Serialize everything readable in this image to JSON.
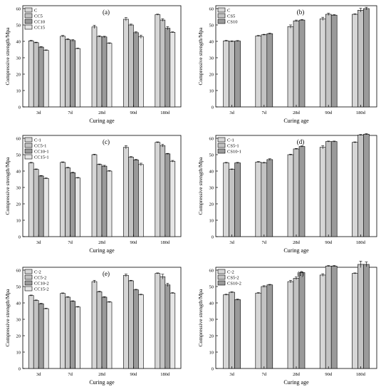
{
  "chart_data": [
    {
      "type": "bar",
      "panel_label": "(a)",
      "categories": [
        "3d",
        "7d",
        "28d",
        "90d",
        "180d"
      ],
      "series": [
        {
          "name": "C",
          "values": [
            40.3,
            43.1,
            48.8,
            53.5,
            56.3
          ],
          "errors": [
            0.3,
            0.5,
            1.0,
            1.0,
            0.3
          ]
        },
        {
          "name": "CC5",
          "values": [
            39.2,
            41.2,
            43.0,
            50.0,
            53.0
          ],
          "errors": [
            0.3,
            0.4,
            0.4,
            0.5,
            0.8
          ]
        },
        {
          "name": "CC10",
          "values": [
            36.5,
            40.5,
            42.7,
            45.3,
            48.0
          ],
          "errors": [
            0.3,
            0.5,
            0.4,
            0.5,
            1.0
          ]
        },
        {
          "name": "CC15",
          "values": [
            34.5,
            35.6,
            38.8,
            42.8,
            45.5
          ],
          "errors": [
            0.3,
            0.3,
            0.3,
            1.0,
            0.3
          ]
        }
      ],
      "xlabel": "Curing age",
      "ylabel": "Compressive strength/Mpa",
      "ylim": [
        0,
        60
      ],
      "yticks": [
        "0",
        "10",
        "20",
        "30",
        "40",
        "50",
        "60"
      ],
      "legend": "top-left",
      "grid": false
    },
    {
      "type": "bar",
      "panel_label": "(b)",
      "categories": [
        "3d",
        "7d",
        "28d",
        "90d",
        "180d"
      ],
      "series": [
        {
          "name": "C",
          "values": [
            40.3,
            43.3,
            49.0,
            53.7,
            56.5
          ],
          "errors": [
            0.3,
            0.3,
            1.0,
            1.0,
            0.3
          ]
        },
        {
          "name": "CS5",
          "values": [
            40.0,
            44.0,
            52.5,
            56.5,
            59.0
          ],
          "errors": [
            0.3,
            0.3,
            0.5,
            0.7,
            1.2
          ]
        },
        {
          "name": "CS10",
          "values": [
            40.2,
            44.7,
            53.0,
            56.0,
            60.0
          ],
          "errors": [
            0.3,
            0.3,
            0.3,
            0.3,
            0.8
          ]
        }
      ],
      "xlabel": "Curing age",
      "ylabel": "Compressive strength/Mpa",
      "ylim": [
        0,
        60
      ],
      "yticks": [
        "0",
        "10",
        "20",
        "30",
        "40",
        "50",
        "60"
      ],
      "legend": "top-left",
      "grid": false
    },
    {
      "type": "bar",
      "panel_label": "(c)",
      "categories": [
        "3d",
        "7d",
        "28d",
        "90d",
        "180d"
      ],
      "series": [
        {
          "name": "C-1",
          "values": [
            45.0,
            45.3,
            50.0,
            54.5,
            57.5
          ],
          "errors": [
            0.3,
            0.3,
            0.3,
            1.0,
            0.3
          ]
        },
        {
          "name": "CC5-1",
          "values": [
            41.0,
            42.0,
            44.0,
            48.5,
            55.5
          ],
          "errors": [
            0.3,
            0.3,
            0.3,
            0.3,
            0.8
          ]
        },
        {
          "name": "CC10-1",
          "values": [
            37.0,
            39.0,
            43.0,
            46.8,
            50.5
          ],
          "errors": [
            0.3,
            0.3,
            0.5,
            0.3,
            0.3
          ]
        },
        {
          "name": "CC15-1",
          "values": [
            35.5,
            35.8,
            40.0,
            44.0,
            46.0
          ],
          "errors": [
            0.3,
            0.3,
            0.3,
            0.8,
            0.5
          ]
        }
      ],
      "xlabel": "Curing age",
      "ylabel": "Compressive strength/Mpa",
      "ylim": [
        0,
        60
      ],
      "yticks": [
        "0",
        "10",
        "20",
        "30",
        "40",
        "50",
        "60"
      ],
      "legend": "top-left",
      "grid": false
    },
    {
      "type": "bar",
      "panel_label": "(d)",
      "categories": [
        "3d",
        "7d",
        "28d",
        "90d",
        "180d"
      ],
      "series": [
        {
          "name": "C-1",
          "values": [
            45.0,
            45.5,
            50.0,
            54.5,
            57.5
          ],
          "errors": [
            0.3,
            0.3,
            0.3,
            1.0,
            0.3
          ]
        },
        {
          "name": "CS5-1",
          "values": [
            41.0,
            45.0,
            53.5,
            58.0,
            62.0
          ],
          "errors": [
            0.3,
            0.3,
            0.3,
            0.3,
            0.3
          ]
        },
        {
          "name": "CS10-1",
          "values": [
            45.0,
            47.0,
            55.0,
            58.0,
            62.5
          ],
          "errors": [
            0.3,
            0.5,
            0.3,
            0.3,
            0.3
          ]
        }
      ],
      "xlabel": "Curing age",
      "ylabel": "Compressive strength/Mpa",
      "ylim": [
        0,
        60
      ],
      "yticks": [
        "0",
        "10",
        "20",
        "30",
        "40",
        "50",
        "60"
      ],
      "legend": "top-left",
      "grid": false
    },
    {
      "type": "bar",
      "panel_label": "(e)",
      "categories": [
        "3d",
        "7d",
        "28d",
        "90d",
        "180d"
      ],
      "series": [
        {
          "name": "C-2",
          "values": [
            44.5,
            45.8,
            53.0,
            56.8,
            58.0
          ],
          "errors": [
            0.3,
            0.3,
            0.8,
            0.8,
            0.3
          ]
        },
        {
          "name": "CC5-2",
          "values": [
            41.5,
            43.5,
            46.8,
            53.5,
            56.0
          ],
          "errors": [
            0.3,
            0.3,
            0.3,
            0.3,
            1.5
          ]
        },
        {
          "name": "CC10-2",
          "values": [
            39.5,
            41.0,
            43.5,
            48.0,
            51.0
          ],
          "errors": [
            0.3,
            0.3,
            0.3,
            0.3,
            1.0
          ]
        },
        {
          "name": "CC15-2",
          "values": [
            36.5,
            37.5,
            40.5,
            45.0,
            46.0
          ],
          "errors": [
            0.3,
            0.3,
            0.3,
            0.3,
            0.3
          ]
        }
      ],
      "xlabel": "Curing age",
      "ylabel": "Compressive strength/Mpa",
      "ylim": [
        0,
        60
      ],
      "yticks": [
        "0",
        "10",
        "20",
        "30",
        "40",
        "50",
        "60"
      ],
      "legend": "top-left",
      "grid": false
    },
    {
      "type": "bar",
      "panel_label": "(f)",
      "categories": [
        "3d",
        "7d",
        "28d",
        "90d",
        "180d"
      ],
      "series": [
        {
          "name": "C-2",
          "values": [
            45.0,
            46.0,
            53.0,
            57.0,
            58.0
          ],
          "errors": [
            0.3,
            0.3,
            0.8,
            0.8,
            0.3
          ]
        },
        {
          "name": "CS5-2",
          "values": [
            46.5,
            50.0,
            55.0,
            62.5,
            63.5
          ],
          "errors": [
            0.3,
            0.5,
            0.8,
            0.3,
            2.0
          ]
        },
        {
          "name": "CS10-2",
          "values": [
            42.0,
            51.0,
            58.5,
            62.5,
            63.5
          ],
          "errors": [
            0.3,
            0.3,
            0.3,
            0.3,
            1.5
          ]
        }
      ],
      "xlabel": "Curing age",
      "ylabel": "Compressive strength/Mpa",
      "ylim": [
        0,
        60
      ],
      "yticks": [
        "0",
        "10",
        "20",
        "30",
        "40",
        "50",
        "60"
      ],
      "legend": "top-left",
      "grid": false
    }
  ],
  "colors": {
    "frame": "#000000",
    "bars_4": [
      "#d6d6d6",
      "#c3c3c3",
      "#9a9a9a",
      "#e6e6e6"
    ],
    "bars_3": [
      "#d6d6d6",
      "#c3c3c3",
      "#9a9a9a"
    ]
  }
}
